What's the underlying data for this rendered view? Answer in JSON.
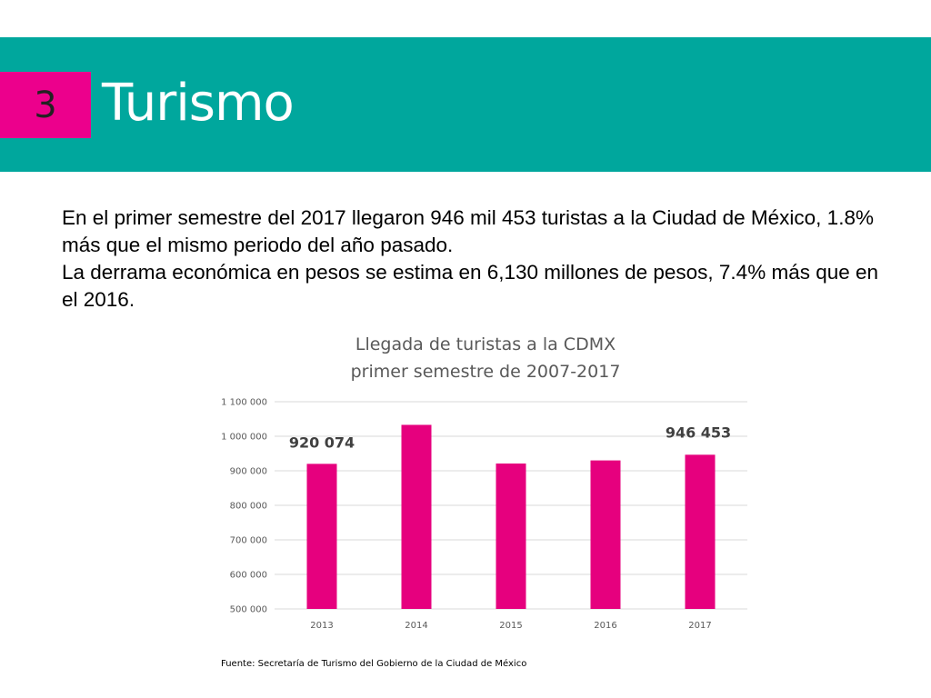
{
  "header": {
    "section_number": "3",
    "title": "Turismo"
  },
  "body": {
    "paragraph_1": "En el primer semestre del 2017 llegaron 946 mil 453 turistas a la Ciudad de México, 1.8% más que el mismo periodo del año pasado.",
    "paragraph_2": "La derrama económica en pesos se estima en 6,130 millones de pesos, 7.4% más que en el 2016."
  },
  "chart_data": {
    "type": "bar",
    "title": "Llegada de turistas a la CDMX",
    "subtitle": "primer semestre de 2007-2017",
    "categories": [
      "2013",
      "2014",
      "2015",
      "2016",
      "2017"
    ],
    "values": [
      920074,
      1033000,
      921000,
      930000,
      946453
    ],
    "data_labels": [
      {
        "category": "2013",
        "text": "920 074"
      },
      {
        "category": "2017",
        "text": "946 453"
      }
    ],
    "y_ticks": [
      {
        "value": 500000,
        "label": "500 000"
      },
      {
        "value": 600000,
        "label": "600 000"
      },
      {
        "value": 700000,
        "label": "700 000"
      },
      {
        "value": 800000,
        "label": "800 000"
      },
      {
        "value": 900000,
        "label": "900 000"
      },
      {
        "value": 1000000,
        "label": "1 000 000"
      },
      {
        "value": 1100000,
        "label": "1 100 000"
      }
    ],
    "ylim": [
      500000,
      1100000
    ],
    "grid": true,
    "legend": "none",
    "bar_color": "#e6007e"
  },
  "footer": {
    "source": "Fuente: Secretaría de Turismo del Gobierno de la Ciudad de México"
  },
  "colors": {
    "banner": "#00a79d",
    "badge": "#ec008c"
  }
}
